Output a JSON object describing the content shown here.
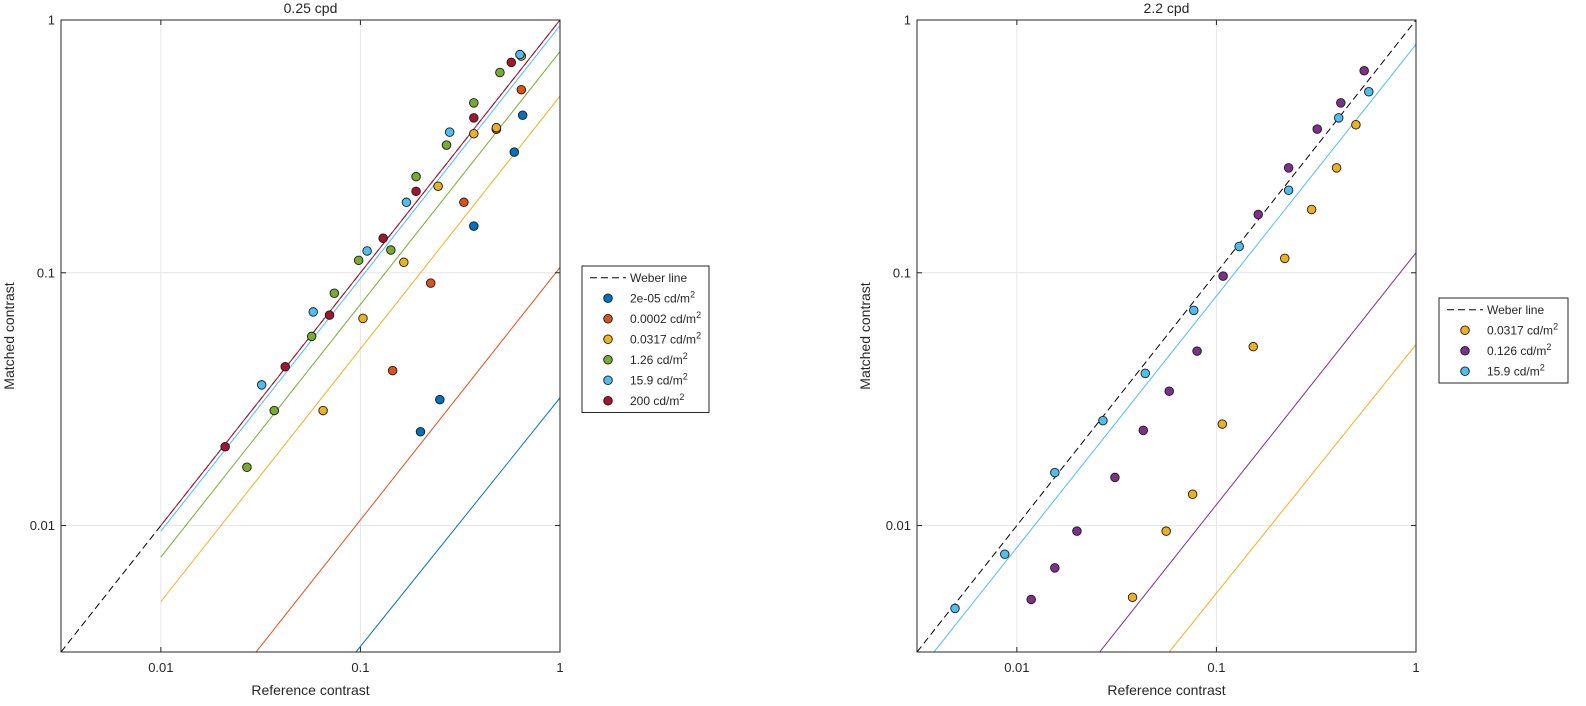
{
  "chart_data": [
    {
      "type": "scatter",
      "title": "0.25 cpd",
      "xlabel": "Reference contrast",
      "ylabel": "Matched contrast",
      "xscale": "log",
      "yscale": "log",
      "xlim": [
        0.00316,
        1
      ],
      "ylim": [
        0.00316,
        1
      ],
      "xticks": [
        {
          "value": 0.01,
          "label": "0.01"
        },
        {
          "value": 0.1,
          "label": "0.1"
        },
        {
          "value": 1,
          "label": "1"
        }
      ],
      "yticks": [
        {
          "value": 0.01,
          "label": "0.01"
        },
        {
          "value": 0.1,
          "label": "0.1"
        },
        {
          "value": 1,
          "label": "1"
        }
      ],
      "grid": true,
      "legend_position": "right",
      "weber_line": {
        "label": "Weber line",
        "color": "#000000",
        "dashed": true,
        "from": 0.00316,
        "to": 1
      },
      "series": [
        {
          "name": "2e-05",
          "unit": "cd/m",
          "sup": "2",
          "color": "#0072BD",
          "points": [
            [
              0.2,
              0.0235
            ],
            [
              0.25,
              0.0315
            ],
            [
              0.37,
              0.153
            ],
            [
              0.48,
              0.37
            ],
            [
              0.59,
              0.3
            ],
            [
              0.65,
              0.42
            ]
          ],
          "fit": {
            "x0": 0.095,
            "y0": 0.00316,
            "x1": 1,
            "y1": 0.032
          }
        },
        {
          "name": "0.0002",
          "unit": "cd/m",
          "sup": "2",
          "color": "#D95319",
          "points": [
            [
              0.145,
              0.041
            ],
            [
              0.225,
              0.091
            ],
            [
              0.33,
              0.19
            ],
            [
              0.48,
              0.37
            ],
            [
              0.64,
              0.53
            ]
          ],
          "fit": {
            "x0": 0.03,
            "y0": 0.00316,
            "x1": 1,
            "y1": 0.105
          }
        },
        {
          "name": "0.0317",
          "unit": "cd/m",
          "sup": "2",
          "color": "#EDB120",
          "points": [
            [
              0.065,
              0.0285
            ],
            [
              0.103,
              0.066
            ],
            [
              0.165,
              0.11
            ],
            [
              0.245,
              0.22
            ],
            [
              0.37,
              0.355
            ],
            [
              0.48,
              0.375
            ],
            [
              0.64,
              0.72
            ]
          ],
          "fit": {
            "x0": 0.01,
            "y0": 0.005,
            "x1": 1,
            "y1": 0.5
          }
        },
        {
          "name": "1.26",
          "unit": "cd/m",
          "sup": "2",
          "color": "#77AC30",
          "points": [
            [
              0.027,
              0.017
            ],
            [
              0.037,
              0.0285
            ],
            [
              0.057,
              0.056
            ],
            [
              0.074,
              0.083
            ],
            [
              0.098,
              0.112
            ],
            [
              0.142,
              0.123
            ],
            [
              0.19,
              0.24
            ],
            [
              0.27,
              0.32
            ],
            [
              0.37,
              0.47
            ],
            [
              0.5,
              0.62
            ]
          ],
          "fit": {
            "x0": 0.01,
            "y0": 0.0075,
            "x1": 1,
            "y1": 0.75
          }
        },
        {
          "name": "15.9",
          "unit": "cd/m",
          "sup": "2",
          "color": "#4DBEEE",
          "points": [
            [
              0.032,
              0.036
            ],
            [
              0.058,
              0.07
            ],
            [
              0.108,
              0.122
            ],
            [
              0.17,
              0.19
            ],
            [
              0.28,
              0.36
            ],
            [
              0.63,
              0.73
            ]
          ],
          "fit": {
            "x0": 0.01,
            "y0": 0.0095,
            "x1": 1,
            "y1": 0.95
          }
        },
        {
          "name": "200",
          "unit": "cd/m",
          "sup": "2",
          "color": "#A2142F",
          "points": [
            [
              0.021,
              0.0205
            ],
            [
              0.042,
              0.0425
            ],
            [
              0.07,
              0.068
            ],
            [
              0.13,
              0.137
            ],
            [
              0.19,
              0.21
            ],
            [
              0.37,
              0.41
            ],
            [
              0.57,
              0.68
            ]
          ],
          "fit": {
            "x0": 0.01,
            "y0": 0.01,
            "x1": 1,
            "y1": 1
          }
        }
      ]
    },
    {
      "type": "scatter",
      "title": "2.2 cpd",
      "xlabel": "Reference contrast",
      "ylabel": "Matched contrast",
      "xscale": "log",
      "yscale": "log",
      "xlim": [
        0.00316,
        1
      ],
      "ylim": [
        0.00316,
        1
      ],
      "xticks": [
        {
          "value": 0.01,
          "label": "0.01"
        },
        {
          "value": 0.1,
          "label": "0.1"
        },
        {
          "value": 1,
          "label": "1"
        }
      ],
      "yticks": [
        {
          "value": 0.01,
          "label": "0.01"
        },
        {
          "value": 0.1,
          "label": "0.1"
        },
        {
          "value": 1,
          "label": "1"
        }
      ],
      "grid": true,
      "legend_position": "right",
      "weber_line": {
        "label": "Weber line",
        "color": "#000000",
        "dashed": true,
        "from": 0.00316,
        "to": 1
      },
      "series": [
        {
          "name": "0.0317",
          "unit": "cd/m",
          "sup": "2",
          "color": "#EDB120",
          "points": [
            [
              0.038,
              0.0052
            ],
            [
              0.056,
              0.0095
            ],
            [
              0.076,
              0.0133
            ],
            [
              0.107,
              0.0252
            ],
            [
              0.153,
              0.051
            ],
            [
              0.22,
              0.114
            ],
            [
              0.3,
              0.178
            ],
            [
              0.4,
              0.26
            ],
            [
              0.5,
              0.385
            ]
          ],
          "fit": {
            "x0": 0.058,
            "y0": 0.00316,
            "x1": 1,
            "y1": 0.052
          }
        },
        {
          "name": "0.126",
          "unit": "cd/m",
          "sup": "2",
          "color": "#7E2F8E",
          "points": [
            [
              0.0118,
              0.0051
            ],
            [
              0.0155,
              0.0068
            ],
            [
              0.02,
              0.0095
            ],
            [
              0.031,
              0.0155
            ],
            [
              0.043,
              0.0238
            ],
            [
              0.058,
              0.034
            ],
            [
              0.08,
              0.049
            ],
            [
              0.108,
              0.097
            ],
            [
              0.162,
              0.17
            ],
            [
              0.23,
              0.26
            ],
            [
              0.32,
              0.37
            ],
            [
              0.42,
              0.47
            ],
            [
              0.55,
              0.63
            ]
          ],
          "fit": {
            "x0": 0.026,
            "y0": 0.00316,
            "x1": 1,
            "y1": 0.12
          }
        },
        {
          "name": "15.9",
          "unit": "cd/m",
          "sup": "2",
          "color": "#4DBEEE",
          "points": [
            [
              0.0049,
              0.0047
            ],
            [
              0.0087,
              0.0077
            ],
            [
              0.0155,
              0.0162
            ],
            [
              0.027,
              0.026
            ],
            [
              0.044,
              0.04
            ],
            [
              0.077,
              0.071
            ],
            [
              0.13,
              0.127
            ],
            [
              0.23,
              0.212
            ],
            [
              0.41,
              0.41
            ],
            [
              0.58,
              0.52
            ]
          ],
          "fit": {
            "x0": 0.00316,
            "y0": 0.0026,
            "x1": 1,
            "y1": 0.8
          }
        }
      ]
    }
  ]
}
